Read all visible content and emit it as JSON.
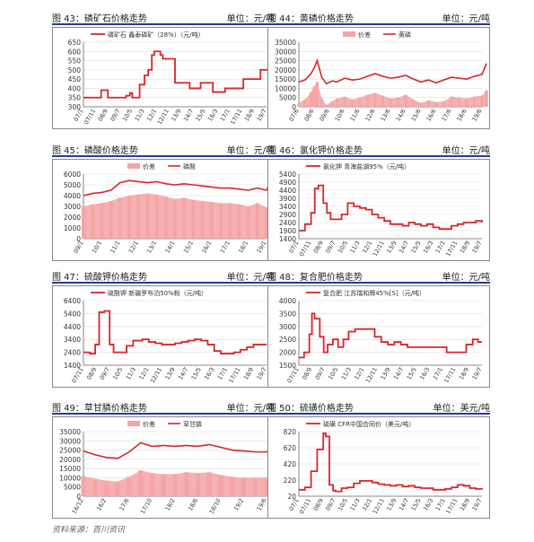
{
  "source": "资料来源：百川资讯",
  "charts": [
    {
      "id": "c43",
      "figure": "图 43：",
      "name": "磷矿石价格走势",
      "unit": "单位：元/吨",
      "chart_data": {
        "type": "line",
        "legend": [
          "磷矿石 鑫泰磷矿（28%）（元/吨）"
        ],
        "ylim": [
          300,
          650
        ],
        "yticks": [
          300,
          350,
          400,
          450,
          500,
          550,
          600,
          650
        ],
        "xticks": [
          "07/1",
          "07/11",
          "08/9",
          "09/7",
          "10/5",
          "11/3",
          "12/1",
          "12/11",
          "13/9",
          "14/7",
          "15/5",
          "16/3",
          "17/1",
          "17/11",
          "18/9",
          "19/7"
        ],
        "x": [
          0,
          0.3,
          1.4,
          1.45,
          2.0,
          3.1,
          3.5,
          3.8,
          4.0,
          4.6,
          5.0,
          5.3,
          5.6,
          5.8,
          6.3,
          6.5,
          7.4,
          7.5,
          8.6,
          8.7,
          9.4,
          9.6,
          10.5,
          10.6,
          11.5,
          11.6,
          12.9,
          13.1,
          14.3,
          14.5,
          14.9,
          15.2,
          15.5
        ],
        "series": [
          {
            "name": "磷矿石",
            "values": [
              350,
              350,
              350,
              390,
              350,
              350,
              360,
              375,
              350,
              420,
              470,
              500,
              580,
              600,
              580,
              560,
              560,
              430,
              430,
              400,
              400,
              430,
              430,
              380,
              380,
              400,
              400,
              450,
              450,
              500,
              500,
              440,
              400
            ]
          }
        ]
      }
    },
    {
      "id": "c44",
      "figure": "图 44：",
      "name": "黄磷价格走势",
      "unit": "单位：元/吨",
      "chart_data": {
        "type": "area",
        "legend": [
          "价差",
          "黄磷"
        ],
        "ylim": [
          0,
          35000
        ],
        "yticks": [
          0,
          5000,
          10000,
          15000,
          20000,
          25000,
          30000,
          35000
        ],
        "xticks": [
          "07/6",
          "08/6",
          "09/6",
          "10/6",
          "11/6",
          "12/6",
          "13/6",
          "14/6",
          "15/6",
          "16/6",
          "17/6",
          "18/6",
          "19/6"
        ],
        "x": [
          0,
          0.4,
          0.8,
          1.0,
          1.2,
          1.5,
          1.8,
          2.2,
          2.5,
          3,
          3.5,
          4,
          4.5,
          5,
          5.5,
          6,
          6.5,
          7,
          7.5,
          8,
          8.5,
          9,
          9.5,
          10,
          10.5,
          11,
          11.5,
          12,
          12.3
        ],
        "series": [
          {
            "name": "黄磷",
            "values": [
              13500,
              14500,
              18000,
              21000,
              25000,
              16000,
              12500,
              14000,
              13500,
              15500,
              14500,
              15000,
              16500,
              18000,
              16500,
              15500,
              16000,
              17000,
              15000,
              13500,
              14500,
              13000,
              14500,
              16000,
              15500,
              15000,
              16500,
              17500,
              23500
            ]
          },
          {
            "name": "价差",
            "values": [
              2000,
              4000,
              8000,
              11000,
              13500,
              4500,
              1000,
              3000,
              4500,
              5500,
              4000,
              5000,
              6500,
              7500,
              6000,
              4500,
              5000,
              6500,
              4000,
              2000,
              3500,
              2500,
              3000,
              5500,
              5000,
              4500,
              5500,
              6000,
              9000
            ]
          }
        ]
      }
    },
    {
      "id": "c45",
      "figure": "图 45：",
      "name": "磷酸价格走势",
      "unit": "单位：元/吨",
      "chart_data": {
        "type": "area",
        "legend": [
          "价差",
          "磷酸"
        ],
        "ylim": [
          0,
          6000
        ],
        "yticks": [
          0,
          1000,
          2000,
          3000,
          4000,
          5000,
          6000
        ],
        "xticks": [
          "09/1",
          "10/1",
          "11/1",
          "12/1",
          "13/1",
          "14/1",
          "15/1",
          "16/1",
          "17/1",
          "18/1",
          "19/1"
        ],
        "x": [
          0,
          0.5,
          1,
          1.5,
          2,
          2.5,
          3,
          3.5,
          4,
          4.5,
          5,
          5.5,
          6,
          6.5,
          7,
          7.5,
          8,
          8.5,
          9,
          9.5,
          10,
          10.3
        ],
        "series": [
          {
            "name": "磷酸",
            "values": [
              4000,
              4200,
              4300,
              4500,
              5200,
              5400,
              5300,
              5200,
              5300,
              5100,
              5000,
              5100,
              5000,
              4900,
              4800,
              4700,
              4700,
              4600,
              4500,
              4700,
              4500,
              5600
            ]
          },
          {
            "name": "价差",
            "values": [
              3000,
              3200,
              3300,
              3500,
              3800,
              4000,
              4100,
              4200,
              4100,
              3900,
              3700,
              3800,
              3600,
              3500,
              3400,
              3300,
              3300,
              3200,
              3000,
              3300,
              2900,
              3800
            ]
          }
        ]
      }
    },
    {
      "id": "c46",
      "figure": "图 46：",
      "name": "氯化钾价格走势",
      "unit": "单位：元/吨",
      "chart_data": {
        "type": "line",
        "legend": [
          "氯化钾 青海盐湖95%（元/吨）"
        ],
        "ylim": [
          1400,
          5400
        ],
        "yticks": [
          1400,
          1900,
          2400,
          2900,
          3400,
          3900,
          4400,
          4900,
          5400
        ],
        "xticks": [
          "07/1",
          "07/11",
          "08/9",
          "09/7",
          "10/5",
          "11/3",
          "12/1",
          "12/11",
          "13/9",
          "14/7",
          "15/5",
          "16/3",
          "17/1",
          "17/11",
          "18/9",
          "19/7"
        ],
        "x": [
          0,
          0.5,
          1,
          1.3,
          1.6,
          2.0,
          2.3,
          2.6,
          3,
          3.5,
          4,
          4.5,
          5,
          5.5,
          6,
          6.5,
          7,
          7.5,
          8,
          8.5,
          9,
          9.5,
          10,
          10.5,
          11,
          11.5,
          12,
          12.5,
          13,
          13.5,
          14,
          14.5,
          15
        ],
        "series": [
          {
            "name": "氯化钾",
            "values": [
              1900,
              2300,
              3000,
              4500,
              4700,
              3600,
              3000,
              2600,
              2600,
              2900,
              3600,
              3400,
              3300,
              3200,
              2900,
              2700,
              2500,
              2300,
              2300,
              2200,
              2400,
              2300,
              2200,
              2300,
              2100,
              2000,
              2000,
              2200,
              2300,
              2400,
              2400,
              2500,
              2400
            ]
          }
        ]
      }
    },
    {
      "id": "c47",
      "figure": "图 47：",
      "name": "硫酸钾价格走势",
      "unit": "单位：元/吨",
      "chart_data": {
        "type": "line",
        "legend": [
          "硫酸钾 新疆罗布泊50%粉（元/吨）"
        ],
        "ylim": [
          1400,
          6400
        ],
        "yticks": [
          1400,
          2400,
          3400,
          4400,
          5400,
          6400
        ],
        "xticks": [
          "07/11",
          "08/9",
          "09/7",
          "10/5",
          "11/3",
          "12/1",
          "12/11",
          "13/9",
          "14/7",
          "15/5",
          "16/3",
          "17/1",
          "17/11",
          "18/9",
          "19/7"
        ],
        "x": [
          0,
          0.5,
          0.9,
          1.2,
          1.6,
          2.0,
          2.3,
          2.8,
          3.3,
          3.8,
          4.5,
          5,
          5.5,
          6,
          6.5,
          7,
          7.5,
          8,
          8.5,
          9,
          9.5,
          10,
          10.5,
          11,
          11.5,
          12,
          12.5,
          13,
          13.5,
          14
        ],
        "series": [
          {
            "name": "硫酸钾",
            "values": [
              2400,
              2300,
              3000,
              5500,
              5600,
              3000,
              2400,
              2400,
              2900,
              3300,
              3400,
              3200,
              3100,
              3000,
              3000,
              3100,
              3200,
              3300,
              3400,
              3300,
              3000,
              2500,
              2300,
              2300,
              2400,
              2600,
              2800,
              3000,
              3000,
              3000
            ]
          }
        ]
      }
    },
    {
      "id": "c48",
      "figure": "图 48：",
      "name": "复合肥价格走势",
      "unit": "单位：元/吨",
      "chart_data": {
        "type": "line",
        "legend": [
          "复合肥 江苏瑞和牌45%[S]（元/吨）"
        ],
        "ylim": [
          1500,
          4000
        ],
        "yticks": [
          1500,
          2000,
          2500,
          3000,
          3500,
          4000
        ],
        "xticks": [
          "07/11",
          "08/9",
          "09/7",
          "10/5",
          "11/3",
          "12/1",
          "12/11",
          "13/9",
          "14/7",
          "15/5",
          "16/3",
          "17/1",
          "17/11",
          "18/9",
          "19/7"
        ],
        "x": [
          0,
          0.4,
          0.8,
          1.0,
          1.2,
          1.6,
          1.9,
          2.2,
          2.6,
          3,
          3.4,
          3.8,
          4.3,
          4.8,
          5.3,
          5.8,
          6.3,
          6.8,
          7.3,
          7.8,
          8.3,
          8.8,
          9.3,
          9.8,
          10.3,
          10.8,
          11.3,
          11.8,
          12.3,
          12.8,
          13.3,
          13.7,
          14
        ],
        "series": [
          {
            "name": "复合肥",
            "values": [
              1800,
              2000,
              2700,
              3500,
              3300,
              2600,
              2000,
              2300,
              2500,
              2200,
              2500,
              2800,
              2900,
              2900,
              2900,
              2600,
              2400,
              2300,
              2400,
              2300,
              2200,
              2200,
              2200,
              2200,
              2200,
              2200,
              2000,
              2000,
              2000,
              2300,
              2500,
              2400,
              2400
            ]
          }
        ]
      }
    },
    {
      "id": "c49",
      "figure": "图 49：",
      "name": "草甘膦价格走势",
      "unit": "单位：元/吨",
      "chart_data": {
        "type": "area",
        "legend": [
          "价差",
          "草甘膦"
        ],
        "ylim": [
          0,
          35000
        ],
        "yticks": [
          0,
          5000,
          10000,
          15000,
          20000,
          25000,
          30000,
          35000
        ],
        "xticks": [
          "16/12",
          "16/2",
          "17/6",
          "17/10",
          "18/2",
          "18/6",
          "18/10",
          "19/2",
          "19/6"
        ],
        "x": [
          0,
          0.5,
          1,
          1.5,
          2,
          2.5,
          3,
          3.5,
          4,
          4.5,
          5,
          5.5,
          6,
          6.5,
          7,
          7.5,
          8,
          8.3
        ],
        "series": [
          {
            "name": "草甘膦",
            "values": [
              24500,
              22500,
              21000,
              20500,
              24000,
              29000,
              27000,
              27500,
              27000,
              27500,
              27000,
              28000,
              26500,
              25000,
              24500,
              24000,
              24000,
              27000
            ]
          },
          {
            "name": "价差",
            "values": [
              11000,
              9500,
              8500,
              8000,
              10500,
              14000,
              12500,
              12000,
              12000,
              13000,
              12500,
              13000,
              11500,
              10500,
              10000,
              10000,
              10000,
              13000
            ]
          }
        ]
      }
    },
    {
      "id": "c50",
      "figure": "图 50：",
      "name": "硫磺价格走势",
      "unit": "单位：美元/吨",
      "chart_data": {
        "type": "line",
        "legend": [
          "硫磺 CFR中国合同价（美元/吨）"
        ],
        "ylim": [
          20,
          820
        ],
        "yticks": [
          20,
          220,
          420,
          620,
          820
        ],
        "xticks": [
          "07/1",
          "07/11",
          "08/9",
          "09/7",
          "10/5",
          "11/3",
          "12/1",
          "12/11",
          "13/9",
          "14/7",
          "15/5",
          "16/3",
          "17/1",
          "17/11",
          "18/9",
          "19/7"
        ],
        "x": [
          0,
          0.5,
          1,
          1.5,
          2,
          2.2,
          2.5,
          2.8,
          3,
          3.5,
          4,
          4.5,
          5,
          5.5,
          6,
          6.5,
          7,
          7.5,
          8,
          8.5,
          9,
          9.5,
          10,
          10.5,
          11,
          11.5,
          12,
          12.5,
          13,
          13.5,
          14,
          14.5,
          15
        ],
        "series": [
          {
            "name": "硫磺",
            "values": [
              100,
              130,
              330,
              600,
              800,
              760,
              160,
              90,
              80,
              120,
              130,
              180,
              210,
              210,
              190,
              170,
              160,
              150,
              160,
              140,
              150,
              130,
              120,
              120,
              100,
              100,
              110,
              130,
              160,
              150,
              120,
              110,
              100
            ]
          }
        ]
      }
    }
  ]
}
